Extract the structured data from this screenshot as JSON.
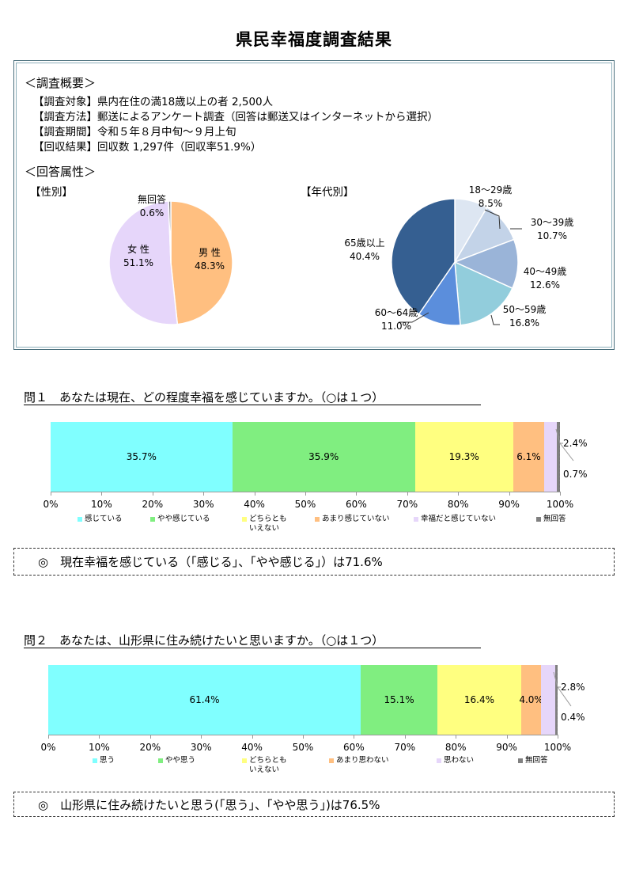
{
  "title": "県民幸福度調査結果",
  "overview": {
    "heading": "＜調査概要＞",
    "lines": [
      "【調査対象】県内在住の満18歳以上の者 2,500人",
      "【調査方法】郵送によるアンケート調査（回答は郵送又はインターネットから選択）",
      "【調査期間】令和５年８月中旬～９月上旬",
      "【回収結果】回収数 1,297件（回収率51.9%）"
    ],
    "attr_heading": "＜回答属性＞"
  },
  "colors": {
    "q_feel": "#80ffff",
    "q_somewhat": "#80ee80",
    "q_neither": "#ffff80",
    "q_notmuch": "#ffbf80",
    "q_not": "#e6d6fa",
    "q_none": "#808080",
    "male": "#ffbf80",
    "female": "#e6d6fa",
    "gender_none": "#7f7f7f",
    "age_18_29": "#dde6f2",
    "age_30_39": "#c3d3e8",
    "age_40_49": "#9ab4d8",
    "age_50_59": "#92cddc",
    "age_60_64": "#5b8edc",
    "age_65": "#355f91"
  },
  "chart_data": [
    {
      "type": "pie",
      "title": "【性別】",
      "slices": [
        {
          "label": "男 性",
          "value": 48.3,
          "display": "48.3%"
        },
        {
          "label": "女 性",
          "value": 51.1,
          "display": "51.1%"
        },
        {
          "label": "無回答",
          "value": 0.6,
          "display": "0.6%"
        }
      ]
    },
    {
      "type": "pie",
      "title": "【年代別】",
      "slices": [
        {
          "label": "18～29歳",
          "value": 8.5,
          "display": "8.5%"
        },
        {
          "label": "30～39歳",
          "value": 10.7,
          "display": "10.7%"
        },
        {
          "label": "40～49歳",
          "value": 12.6,
          "display": "12.6%"
        },
        {
          "label": "50～59歳",
          "value": 16.8,
          "display": "16.8%"
        },
        {
          "label": "60～64歳",
          "value": 11.0,
          "display": "11.0%"
        },
        {
          "label": "65歳以上",
          "value": 40.4,
          "display": "40.4%"
        }
      ]
    },
    {
      "type": "bar",
      "orientation": "horizontal-stacked",
      "title": "問１　あなたは現在、どの程度幸福を感じていますか。（○は１つ）",
      "xlim": [
        0,
        100
      ],
      "ticks": [
        "0%",
        "10%",
        "20%",
        "30%",
        "40%",
        "50%",
        "60%",
        "70%",
        "80%",
        "90%",
        "100%"
      ],
      "series": [
        {
          "name": "感じている",
          "value": 35.7,
          "display": "35.7%"
        },
        {
          "name": "やや感じている",
          "value": 35.9,
          "display": "35.9%"
        },
        {
          "name": "どちらとも\nいえない",
          "value": 19.3,
          "display": "19.3%"
        },
        {
          "name": "あまり感じていない",
          "value": 6.1,
          "display": "6.1%"
        },
        {
          "name": "幸福だと感じていない",
          "value": 2.4,
          "display": "2.4%"
        },
        {
          "name": "無回答",
          "value": 0.7,
          "display": "0.7%"
        }
      ],
      "legend": "bottom"
    },
    {
      "type": "bar",
      "orientation": "horizontal-stacked",
      "title": "問２　あなたは、山形県に住み続けたいと思いますか。（○は１つ）",
      "xlim": [
        0,
        100
      ],
      "ticks": [
        "0%",
        "10%",
        "20%",
        "30%",
        "40%",
        "50%",
        "60%",
        "70%",
        "80%",
        "90%",
        "100%"
      ],
      "series": [
        {
          "name": "思う",
          "value": 61.4,
          "display": "61.4%"
        },
        {
          "name": "やや思う",
          "value": 15.1,
          "display": "15.1%"
        },
        {
          "name": "どちらとも\nいえない",
          "value": 16.4,
          "display": "16.4%"
        },
        {
          "name": "あまり思わない",
          "value": 4.0,
          "display": "4.0%"
        },
        {
          "name": "思わない",
          "value": 2.8,
          "display": "2.8%"
        },
        {
          "name": "無回答",
          "value": 0.4,
          "display": "0.4%"
        }
      ],
      "legend": "bottom"
    }
  ],
  "conclusions": [
    "◎　現在幸福を感じている（「感じる」、「やや感じる」）は71.6%",
    "◎　山形県に住み続けたいと思う(「思う」、「やや思う」)は76.5%"
  ]
}
